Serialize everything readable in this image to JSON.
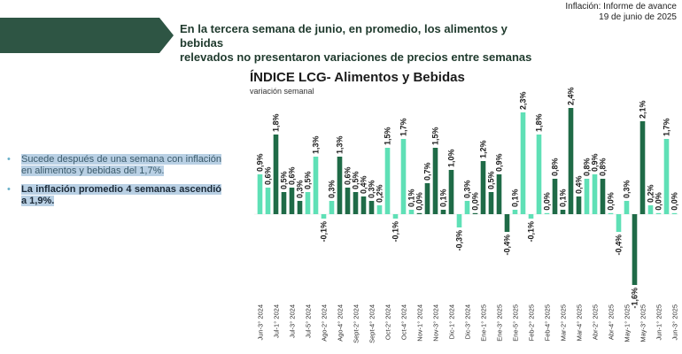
{
  "header": {
    "headline_line1": "En la tercera semana de junio, en promedio, los alimentos y bebidas",
    "headline_line2": "relevados no presentaron variaciones de precios entre semanas",
    "source_line1": "Inflación: Informe de avance",
    "source_line2": "19 de junio de 2025",
    "banner_color": "#2e5544"
  },
  "notes": [
    {
      "text": "Sucede después de una semana con inflación en alimentos y bebidas del 1,7%."
    },
    {
      "text": "La inflación promedio 4 semanas ascendió a 1,9%."
    }
  ],
  "chart_data": {
    "type": "bar",
    "title": "ÍNDICE LCG- Alimentos y Bebidas",
    "subtitle": "variación semanal",
    "ylim": [
      -1.7,
      2.5
    ],
    "grid": false,
    "colors": {
      "dark": "#1f6b47",
      "light": "#5fe0b6"
    },
    "categories": [
      "Jun-3° 2024",
      "",
      "Jul-1° 2024",
      "",
      "Jul-3° 2024",
      "",
      "Jul-5° 2024",
      "",
      "Ago-2° 2024",
      "",
      "Ago-4° 2024",
      "",
      "Sept-2° 2024",
      "",
      "Sept-4° 2024",
      "",
      "Oct-2° 2024",
      "",
      "Oct-4° 2024",
      "",
      "Nov-1° 2024",
      "",
      "Nov-3° 2024",
      "",
      "Dic-1° 2024",
      "",
      "Dic-3° 2024",
      "",
      "Ene-1° 2025",
      "",
      "Ene-3° 2025",
      "",
      "Ene-5° 2025",
      "",
      "Feb-2° 2025",
      "",
      "Feb-4° 2025",
      "",
      "Mar-2° 2025",
      "",
      "Mar-4° 2025",
      "",
      "Abr-2° 2025",
      "",
      "Abr-4° 2025",
      "",
      "May-1° 2025",
      "",
      "May-3° 2025",
      "",
      "Jun-1° 2025",
      "",
      "Jun-3° 2025"
    ],
    "values": [
      0.9,
      0.6,
      1.8,
      0.5,
      0.6,
      0.3,
      0.5,
      1.3,
      -0.1,
      0.3,
      1.3,
      0.6,
      0.5,
      0.4,
      0.3,
      0.2,
      1.5,
      -0.1,
      1.7,
      0.1,
      0.0,
      0.7,
      1.5,
      0.1,
      1.0,
      -0.3,
      0.3,
      0.0,
      1.2,
      0.5,
      0.9,
      -0.4,
      0.1,
      2.3,
      -0.1,
      1.8,
      0.0,
      0.8,
      0.1,
      2.4,
      0.4,
      0.8,
      0.9,
      0.8,
      0.0,
      -0.4,
      0.3,
      -1.6,
      2.1,
      0.2,
      0.0,
      1.7,
      0.0
    ],
    "labels": [
      "0,9%",
      "0,6%",
      "1,8%",
      "0,5%",
      "0,6%",
      "0,3%",
      "0,5%",
      "1,3%",
      "-0,1%",
      "0,3%",
      "1,3%",
      "0,6%",
      "0,5%",
      "0,4%",
      "0,3%",
      "0,2%",
      "1,5%",
      "-0,1%",
      "1,7%",
      "0,1%",
      "0,0%",
      "0,7%",
      "1,5%",
      "0,1%",
      "1,0%",
      "-0,3%",
      "0,3%",
      "0,0%",
      "1,2%",
      "0,5%",
      "0,9%",
      "-0,4%",
      "0,1%",
      "2,3%",
      "-0,1%",
      "1,8%",
      "0,0%",
      "0,8%",
      "0,1%",
      "2,4%",
      "0,4%",
      "0,8%",
      "0,9%",
      "0,8%",
      "0,0%",
      "-0,4%",
      "0,3%",
      "-1,6%",
      "2,1%",
      "0,2%",
      "0,0%",
      "1,7%",
      "0,0%"
    ],
    "tones": [
      "light",
      "light",
      "dark",
      "dark",
      "dark",
      "dark",
      "light",
      "light",
      "light",
      "light",
      "dark",
      "dark",
      "dark",
      "dark",
      "dark",
      "light",
      "light",
      "light",
      "light",
      "light",
      "dark",
      "dark",
      "dark",
      "dark",
      "dark",
      "light",
      "light",
      "dark",
      "dark",
      "dark",
      "dark",
      "dark",
      "light",
      "light",
      "light",
      "light",
      "light",
      "dark",
      "dark",
      "dark",
      "dark",
      "light",
      "light",
      "dark",
      "light",
      "light",
      "light",
      "dark",
      "dark",
      "light",
      "light",
      "light",
      "light"
    ]
  }
}
